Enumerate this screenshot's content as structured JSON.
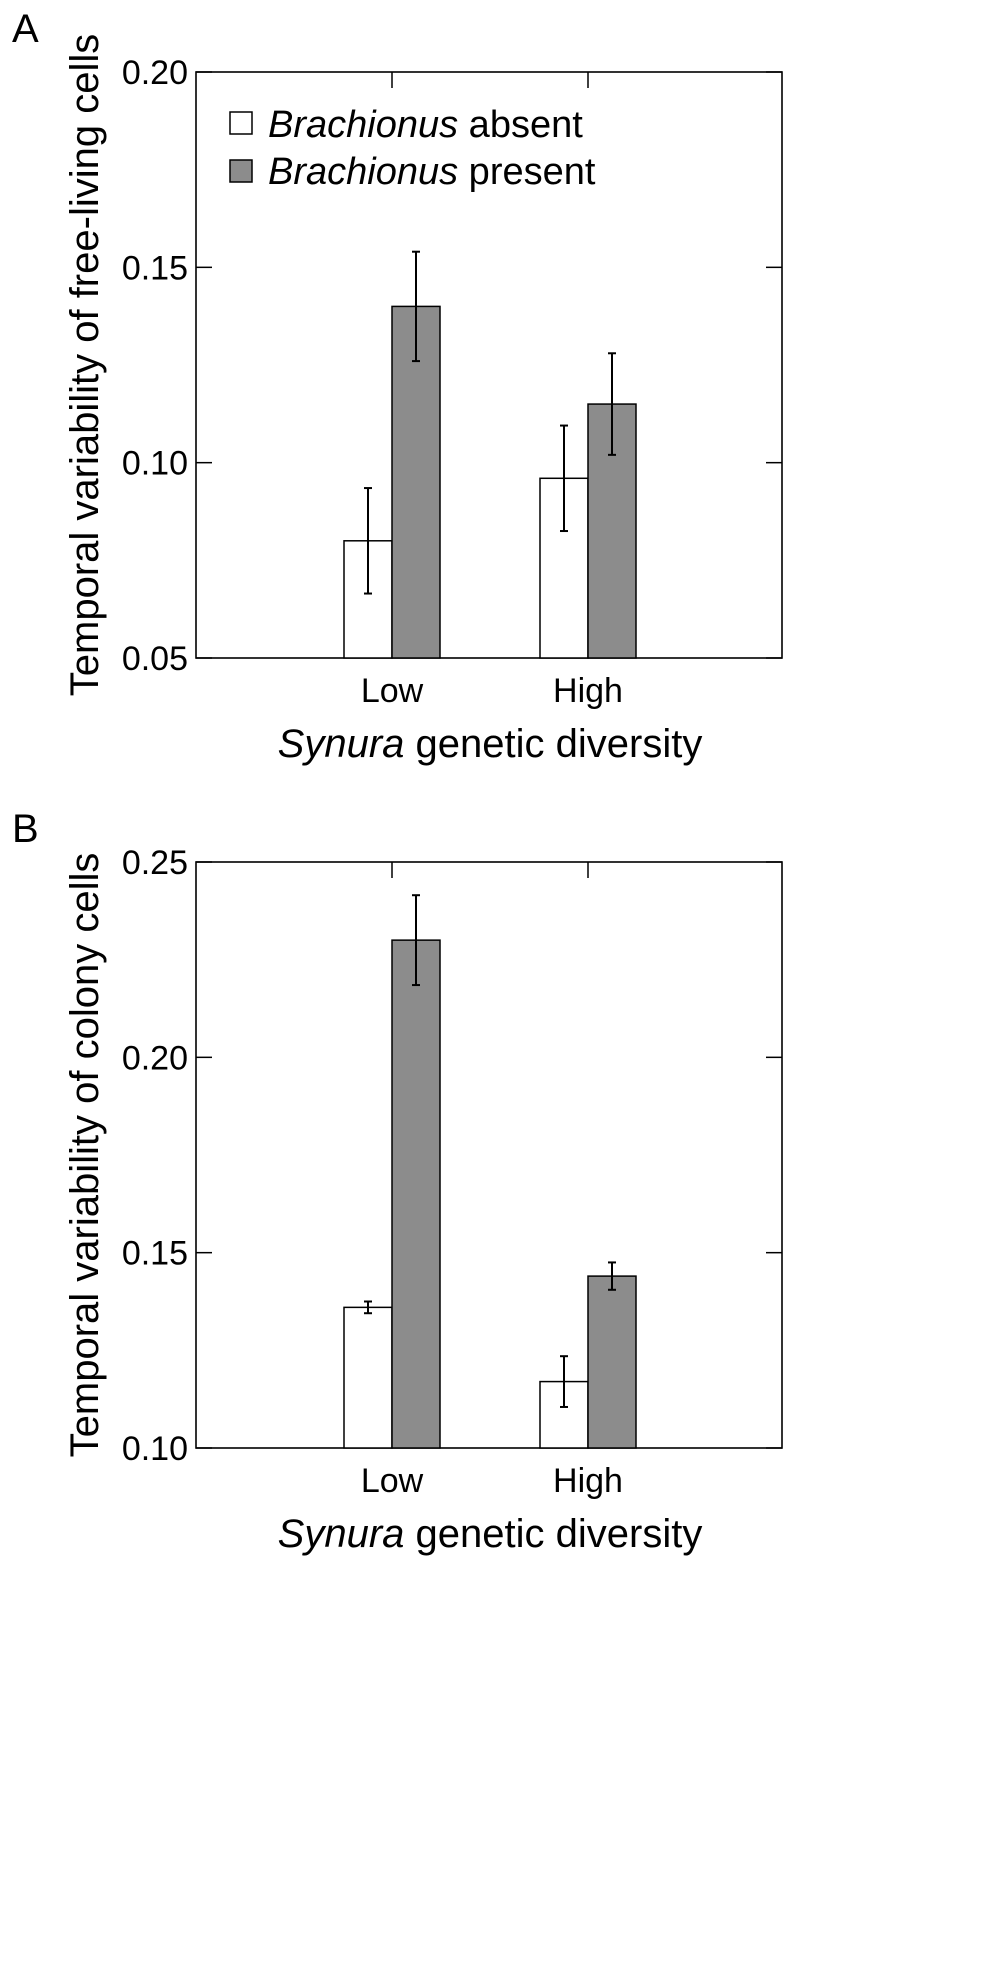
{
  "chart_data": [
    {
      "type": "bar",
      "panel": "A",
      "categories": [
        "Low",
        "High"
      ],
      "xlabel_italic": "Synura",
      "xlabel_rest": " genetic diversity",
      "ylabel": "Temporal variability of free-living cells",
      "ylim": [
        0.05,
        0.2
      ],
      "yticks": [
        "0.05",
        "0.10",
        "0.15",
        "0.20"
      ],
      "grid": false,
      "legend_position": "top-left",
      "series": [
        {
          "name_italic": "Brachionus",
          "name_rest": " absent",
          "color": "#ffffff",
          "values": [
            0.08,
            0.096
          ],
          "errors": [
            0.0135,
            0.0135
          ]
        },
        {
          "name_italic": "Brachionus",
          "name_rest": " present",
          "color": "#8c8c8c",
          "values": [
            0.14,
            0.115
          ],
          "errors": [
            0.014,
            0.013
          ]
        }
      ]
    },
    {
      "type": "bar",
      "panel": "B",
      "categories": [
        "Low",
        "High"
      ],
      "xlabel_italic": "Synura",
      "xlabel_rest": " genetic diversity",
      "ylabel": "Temporal variability of colony cells",
      "ylim": [
        0.1,
        0.25
      ],
      "yticks": [
        "0.10",
        "0.15",
        "0.20",
        "0.25"
      ],
      "grid": false,
      "series": [
        {
          "color": "#ffffff",
          "values": [
            0.136,
            0.117
          ],
          "errors": [
            0.0015,
            0.0065
          ]
        },
        {
          "color": "#8c8c8c",
          "values": [
            0.23,
            0.144
          ],
          "errors": [
            0.0115,
            0.0035
          ]
        }
      ]
    }
  ]
}
